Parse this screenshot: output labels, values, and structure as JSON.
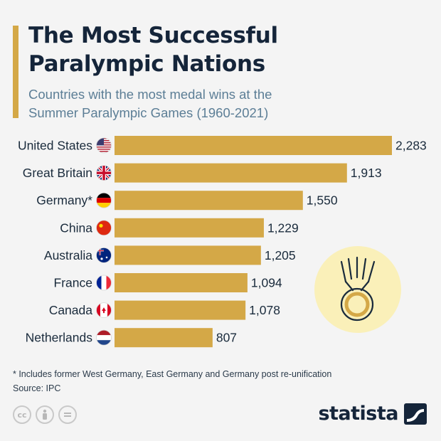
{
  "header": {
    "title_line1": "The Most Successful",
    "title_line2": "Paralympic Nations",
    "subtitle_line1": "Countries with the most medal wins at the",
    "subtitle_line2": "Summer Paralympic Games (1960-2021)"
  },
  "colors": {
    "accent": "#d4a847",
    "bar": "#d4a847",
    "medal_bg": "#faf0b9",
    "medal_line": "#c99a2e"
  },
  "chart_data": {
    "type": "bar",
    "orientation": "horizontal",
    "categories": [
      "United States",
      "Great Britain",
      "Germany*",
      "China",
      "Australia",
      "France",
      "Canada",
      "Netherlands"
    ],
    "values": [
      2283,
      1913,
      1550,
      1229,
      1205,
      1094,
      1078,
      807
    ],
    "value_labels": [
      "2,283",
      "1,913",
      "1,550",
      "1,229",
      "1,205",
      "1,094",
      "1,078",
      "807"
    ],
    "flags": [
      "us-flag-icon",
      "gb-flag-icon",
      "de-flag-icon",
      "cn-flag-icon",
      "au-flag-icon",
      "fr-flag-icon",
      "ca-flag-icon",
      "nl-flag-icon"
    ],
    "xlim": [
      0,
      2283
    ]
  },
  "footer": {
    "footnote": "* Includes former West Germany, East Germany and Germany post re-unification",
    "source": "Source: IPC",
    "brand": "statista",
    "cc_icons": [
      "cc",
      "by",
      "nd"
    ]
  }
}
